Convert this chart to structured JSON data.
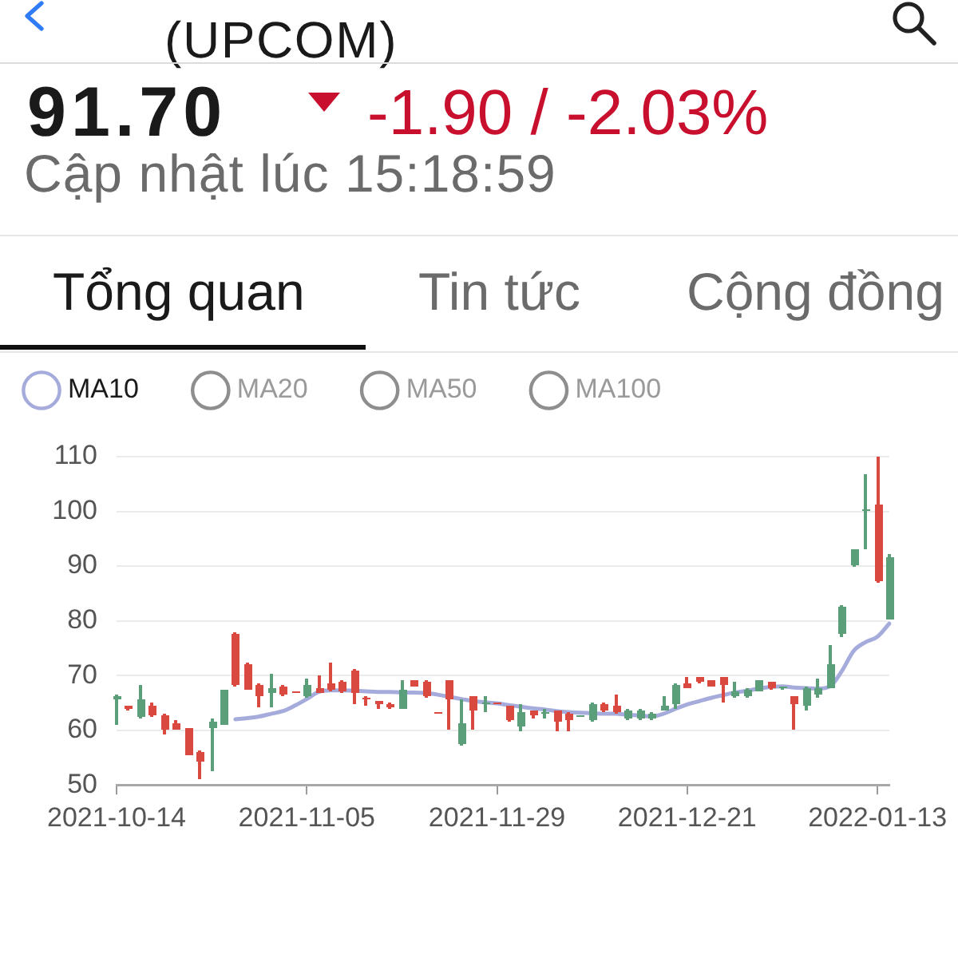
{
  "chart_data": {
    "type": "candlestick",
    "title": "(UPCOM)",
    "subtitle": "Cập nhật lúc 15:18:59",
    "annotations": [
      "91.70",
      "-1.90 / -2.03%",
      "Tổng quan",
      "Tin tức",
      "Cộng đồng"
    ],
    "categories": [
      "2021-10-14",
      null,
      null,
      null,
      null,
      null,
      null,
      null,
      null,
      null,
      null,
      null,
      null,
      null,
      null,
      null,
      "2021-11-05",
      null,
      null,
      null,
      null,
      null,
      null,
      null,
      null,
      null,
      null,
      null,
      null,
      null,
      null,
      null,
      "2021-11-29",
      null,
      null,
      null,
      null,
      null,
      null,
      null,
      null,
      null,
      null,
      null,
      null,
      null,
      null,
      null,
      "2021-12-21",
      null,
      null,
      null,
      null,
      null,
      null,
      null,
      null,
      null,
      null,
      null,
      null,
      null,
      null,
      null,
      "2022-01-13",
      null
    ],
    "ohlc": [
      [
        65.5,
        66.5,
        61.0,
        66.3
      ],
      [
        64.5,
        64.5,
        63.6,
        63.9
      ],
      [
        62.3,
        68.4,
        62.0,
        65.5
      ],
      [
        64.5,
        65.0,
        62.5,
        62.7
      ],
      [
        62.7,
        62.9,
        59.3,
        60.1
      ],
      [
        61.3,
        61.8,
        60.0,
        60.2
      ],
      [
        60.3,
        60.3,
        55.5,
        55.5
      ],
      [
        56.1,
        56.3,
        51.1,
        54.2
      ],
      [
        60.5,
        62.0,
        52.6,
        61.7
      ],
      [
        61.0,
        67.5,
        61.0,
        67.3
      ],
      [
        77.6,
        77.8,
        68.0,
        68.2
      ],
      [
        72.2,
        72.4,
        67.3,
        67.5
      ],
      [
        68.3,
        68.5,
        64.3,
        66.2
      ],
      [
        66.9,
        70.3,
        64.3,
        67.7
      ],
      [
        67.9,
        68.2,
        66.2,
        66.5
      ],
      [
        67.2,
        67.2,
        66.9,
        66.9
      ],
      [
        66.2,
        69.3,
        66.0,
        68.3
      ],
      [
        67.8,
        70.0,
        66.7,
        66.9
      ],
      [
        68.5,
        72.4,
        67.0,
        67.3
      ],
      [
        68.8,
        69.0,
        66.9,
        67.1
      ],
      [
        71.0,
        71.2,
        64.7,
        66.9
      ],
      [
        66.0,
        66.1,
        64.5,
        65.8
      ],
      [
        65.3,
        65.3,
        63.9,
        64.8
      ],
      [
        64.9,
        65.0,
        63.9,
        64.1
      ],
      [
        63.9,
        69.0,
        63.8,
        67.3
      ],
      [
        69.1,
        69.2,
        67.9,
        68.0
      ],
      [
        68.8,
        69.0,
        65.9,
        66.1
      ],
      [
        63.4,
        63.4,
        63.2,
        63.2
      ],
      [
        69.0,
        69.2,
        60.0,
        65.7
      ],
      [
        57.4,
        65.7,
        57.3,
        61.2
      ],
      [
        66.1,
        66.3,
        60.0,
        63.7
      ],
      [
        64.9,
        66.1,
        63.2,
        65.2
      ],
      [
        65.0,
        65.0,
        64.8,
        64.8
      ],
      [
        64.4,
        64.6,
        61.6,
        61.8
      ],
      [
        60.8,
        64.7,
        59.8,
        63.2
      ],
      [
        63.5,
        63.6,
        62.0,
        62.6
      ],
      [
        62.9,
        63.9,
        62.0,
        63.3
      ],
      [
        63.5,
        63.7,
        59.8,
        61.5
      ],
      [
        63.0,
        63.2,
        59.8,
        61.8
      ],
      [
        62.4,
        62.7,
        62.3,
        62.6
      ],
      [
        61.8,
        65.0,
        61.7,
        64.9
      ],
      [
        64.9,
        65.1,
        63.3,
        63.5
      ],
      [
        64.4,
        66.6,
        63.0,
        63.2
      ],
      [
        62.0,
        64.0,
        61.8,
        63.7
      ],
      [
        62.1,
        64.0,
        61.9,
        63.7
      ],
      [
        62.1,
        63.2,
        61.8,
        63.0
      ],
      [
        63.7,
        66.1,
        63.5,
        64.4
      ],
      [
        64.7,
        68.6,
        63.9,
        68.3
      ],
      [
        68.6,
        69.6,
        67.6,
        67.8
      ],
      [
        69.6,
        69.7,
        68.7,
        68.8
      ],
      [
        69.1,
        69.2,
        68.0,
        68.1
      ],
      [
        69.6,
        69.7,
        65.1,
        68.3
      ],
      [
        66.1,
        68.8,
        66.0,
        67.1
      ],
      [
        66.3,
        67.6,
        66.0,
        67.4
      ],
      [
        67.1,
        69.1,
        67.0,
        69.0
      ],
      [
        68.8,
        68.9,
        67.5,
        67.6
      ],
      [
        67.6,
        68.0,
        67.4,
        67.9
      ],
      [
        66.1,
        66.2,
        60.0,
        64.9
      ],
      [
        64.4,
        68.0,
        63.7,
        67.8
      ],
      [
        66.6,
        69.3,
        65.9,
        67.6
      ],
      [
        67.8,
        75.6,
        67.6,
        72.2
      ],
      [
        77.6,
        82.9,
        77.1,
        82.7
      ],
      [
        90.1,
        93.2,
        89.9,
        93.0
      ],
      [
        100.0,
        106.8,
        93.0,
        100.3
      ],
      [
        101.2,
        110.0,
        87.0,
        87.1
      ],
      [
        80.3,
        92.2,
        80.1,
        91.7
      ]
    ],
    "colors": [
      "#5a9f79",
      "#d9493f",
      "#5a9f79",
      "#d9493f",
      "#d9493f",
      "#d9493f",
      "#d9493f",
      "#d9493f",
      "#5a9f79",
      "#5a9f79",
      "#d9493f",
      "#d9493f",
      "#d9493f",
      "#5a9f79",
      "#d9493f",
      "#d9493f",
      "#5a9f79",
      "#d9493f",
      "#d9493f",
      "#d9493f",
      "#d9493f",
      "#d9493f",
      "#d9493f",
      "#d9493f",
      "#5a9f79",
      "#d9493f",
      "#d9493f",
      "#d9493f",
      "#d9493f",
      "#5a9f79",
      "#d9493f",
      "#5a9f79",
      "#d9493f",
      "#d9493f",
      "#5a9f79",
      "#d9493f",
      "#5a9f79",
      "#d9493f",
      "#d9493f",
      "#5a9f79",
      "#5a9f79",
      "#d9493f",
      "#d9493f",
      "#5a9f79",
      "#5a9f79",
      "#5a9f79",
      "#5a9f79",
      "#5a9f79",
      "#d9493f",
      "#d9493f",
      "#d9493f",
      "#d9493f",
      "#5a9f79",
      "#5a9f79",
      "#5a9f79",
      "#d9493f",
      "#5a9f79",
      "#d9493f",
      "#5a9f79",
      "#5a9f79",
      "#5a9f79",
      "#5a9f79",
      "#5a9f79",
      "#5a9f79",
      "#d9493f",
      "#5a9f79"
    ],
    "series": [
      {
        "name": "MA10",
        "type": "line",
        "color": "#a5acdc",
        "values": [
          null,
          null,
          null,
          null,
          null,
          null,
          null,
          null,
          null,
          null,
          62.0,
          62.2,
          62.5,
          63.0,
          63.5,
          64.5,
          65.7,
          67.0,
          67.3,
          67.3,
          67.2,
          67.1,
          67.0,
          67.0,
          66.9,
          66.9,
          66.8,
          66.5,
          66.1,
          65.7,
          65.3,
          65.1,
          64.9,
          64.6,
          64.3,
          64.0,
          63.8,
          63.5,
          63.3,
          63.2,
          63.1,
          63.0,
          63.0,
          62.8,
          62.7,
          62.5,
          63.0,
          63.9,
          64.7,
          65.3,
          65.9,
          66.4,
          66.9,
          67.2,
          67.6,
          67.9,
          68.0,
          67.8,
          67.7,
          67.6,
          68.0,
          70.8,
          74.5,
          76.1,
          77.1,
          79.5
        ]
      },
      {
        "name": "MA20",
        "type": "line",
        "color": "#8e8e8e",
        "values": [
          null,
          null,
          null,
          null,
          null,
          null,
          null,
          null,
          null,
          null,
          null,
          null,
          null,
          null,
          null,
          null,
          null,
          null,
          null,
          null,
          null,
          null,
          null,
          null,
          null,
          null,
          null,
          null,
          null,
          null,
          null,
          null,
          null,
          null,
          null,
          null,
          null,
          null,
          null,
          null,
          null,
          null,
          null,
          null,
          null,
          null,
          null,
          null,
          null,
          null,
          null,
          null,
          null,
          null,
          null,
          null,
          null,
          null,
          null,
          null,
          null,
          null,
          null,
          null,
          null,
          null
        ]
      },
      {
        "name": "MA50",
        "type": "line",
        "color": "#8e8e8e",
        "values": [
          null,
          null,
          null,
          null,
          null,
          null,
          null,
          null,
          null,
          null,
          null,
          null,
          null,
          null,
          null,
          null,
          null,
          null,
          null,
          null,
          null,
          null,
          null,
          null,
          null,
          null,
          null,
          null,
          null,
          null,
          null,
          null,
          null,
          null,
          null,
          null,
          null,
          null,
          null,
          null,
          null,
          null,
          null,
          null,
          null,
          null,
          null,
          null,
          null,
          null,
          null,
          null,
          null,
          null,
          null,
          null,
          null,
          null,
          null,
          null,
          null,
          null,
          null,
          null,
          null,
          null
        ]
      },
      {
        "name": "MA100",
        "type": "line",
        "color": "#8e8e8e",
        "values": [
          null,
          null,
          null,
          null,
          null,
          null,
          null,
          null,
          null,
          null,
          null,
          null,
          null,
          null,
          null,
          null,
          null,
          null,
          null,
          null,
          null,
          null,
          null,
          null,
          null,
          null,
          null,
          null,
          null,
          null,
          null,
          null,
          null,
          null,
          null,
          null,
          null,
          null,
          null,
          null,
          null,
          null,
          null,
          null,
          null,
          null,
          null,
          null,
          null,
          null,
          null,
          null,
          null,
          null,
          null,
          null,
          null,
          null,
          null,
          null,
          null,
          null,
          null,
          null,
          null,
          null
        ]
      }
    ],
    "ylim": [
      50,
      110
    ],
    "yticks": [
      50,
      60,
      70,
      80,
      90,
      100,
      110
    ],
    "grid": "y",
    "legend": "top left"
  }
}
